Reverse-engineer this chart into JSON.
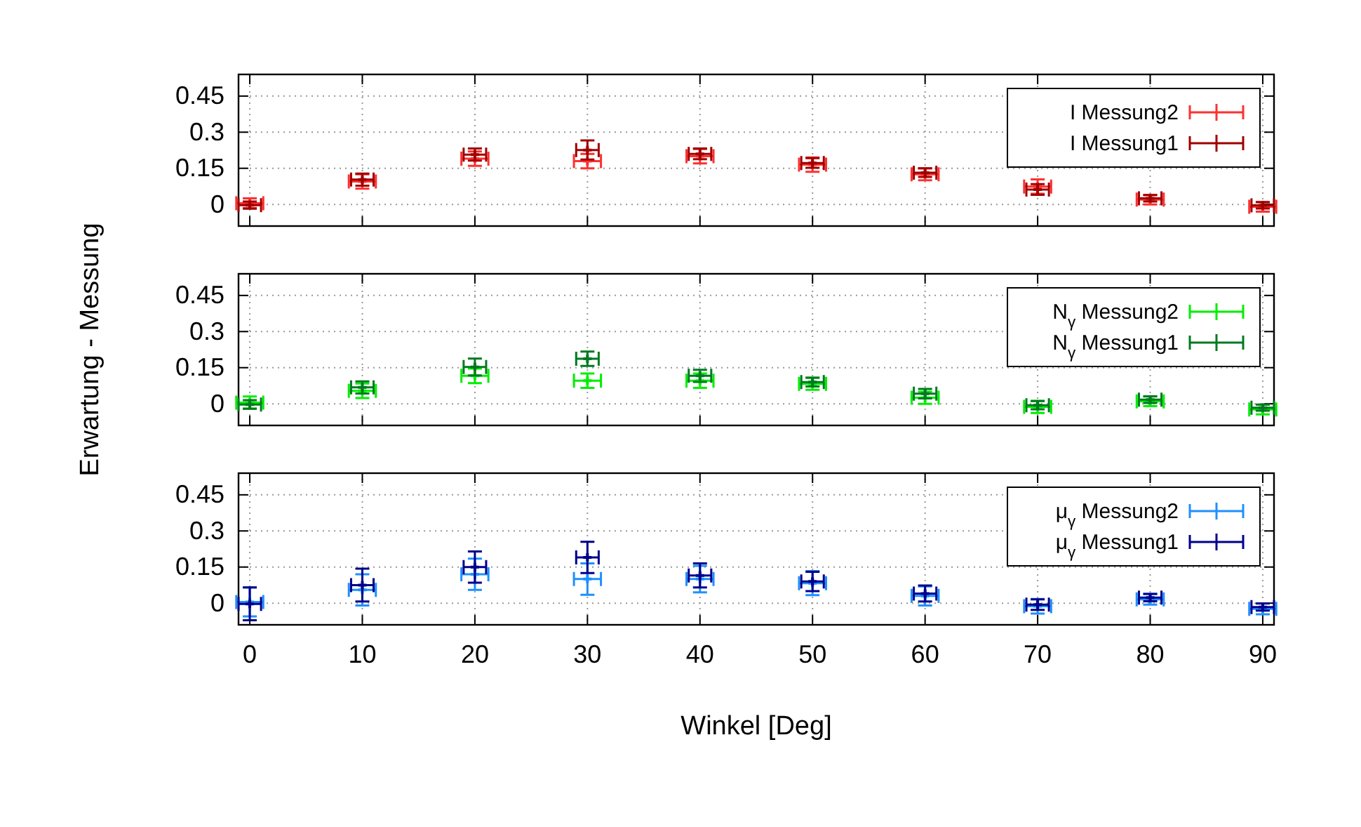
{
  "chart_data": [
    {
      "type": "scatter",
      "x": [
        0,
        10,
        20,
        30,
        40,
        50,
        60,
        70,
        80,
        90
      ],
      "xlim": [
        -1,
        91
      ],
      "xticks": [
        0,
        10,
        20,
        30,
        40,
        50,
        60,
        70,
        80,
        90
      ],
      "ylim": [
        -0.09,
        0.54
      ],
      "yticks": [
        0,
        0.15,
        0.3,
        0.45
      ],
      "grid": true,
      "legend": "top right",
      "marker": "cross",
      "tick_labels": "y",
      "series": [
        {
          "name": "I Messung2",
          "color": "#ff3030",
          "values": [
            0.005,
            0.095,
            0.19,
            0.18,
            0.2,
            0.165,
            0.125,
            0.074,
            0.02,
            -0.01
          ],
          "errors": [
            0.02,
            0.03,
            0.03,
            0.03,
            0.03,
            0.03,
            0.025,
            0.03,
            0.02,
            0.02
          ],
          "xerrors": [
            1.2,
            1.2,
            1.2,
            1.2,
            1.2,
            1.2,
            1.2,
            1.2,
            1.2,
            1.2
          ]
        },
        {
          "name": "I Messung1",
          "color": "#a00000",
          "values": [
            -0.003,
            0.103,
            0.207,
            0.226,
            0.21,
            0.172,
            0.132,
            0.062,
            0.025,
            -0.004
          ],
          "errors": [
            0.015,
            0.025,
            0.025,
            0.04,
            0.022,
            0.02,
            0.018,
            0.022,
            0.013,
            0.013
          ],
          "xerrors": [
            1,
            1,
            1,
            1,
            1,
            1,
            1,
            1,
            1,
            1
          ]
        }
      ]
    },
    {
      "type": "scatter",
      "x": [
        0,
        10,
        20,
        30,
        40,
        50,
        60,
        70,
        80,
        90
      ],
      "xlim": [
        -1,
        91
      ],
      "xticks": [
        0,
        10,
        20,
        30,
        40,
        50,
        60,
        70,
        80,
        90
      ],
      "ylim": [
        -0.09,
        0.54
      ],
      "yticks": [
        0,
        0.15,
        0.3,
        0.45
      ],
      "grid": true,
      "legend": "top right",
      "marker": "cross",
      "tick_labels": "y",
      "ylabel": "Erwartung - Messung",
      "series": [
        {
          "name": "N$_{γ}$ Messung2",
          "color": "#00ee00",
          "values": [
            0.005,
            0.054,
            0.116,
            0.096,
            0.096,
            0.083,
            0.025,
            -0.013,
            0.01,
            -0.024
          ],
          "errors": [
            0.025,
            0.03,
            0.03,
            0.03,
            0.03,
            0.025,
            0.025,
            0.025,
            0.02,
            0.02
          ],
          "xerrors": [
            1.2,
            1.2,
            1.2,
            1.2,
            1.2,
            1.2,
            1.2,
            1.2,
            1.2,
            1.2
          ]
        },
        {
          "name": "N$_{γ}$ Messung1",
          "color": "#007a20",
          "values": [
            -0.003,
            0.068,
            0.153,
            0.187,
            0.116,
            0.09,
            0.042,
            -0.006,
            0.017,
            -0.016
          ],
          "errors": [
            0.018,
            0.025,
            0.035,
            0.03,
            0.025,
            0.018,
            0.02,
            0.017,
            0.014,
            0.013
          ],
          "xerrors": [
            1,
            1,
            1,
            1,
            1,
            1,
            1,
            1,
            1,
            1
          ]
        }
      ]
    },
    {
      "type": "scatter",
      "x": [
        0,
        10,
        20,
        30,
        40,
        50,
        60,
        70,
        80,
        90
      ],
      "xlim": [
        -1,
        91
      ],
      "xticks": [
        0,
        10,
        20,
        30,
        40,
        50,
        60,
        70,
        80,
        90
      ],
      "ylim": [
        -0.09,
        0.54
      ],
      "yticks": [
        0,
        0.15,
        0.3,
        0.45
      ],
      "grid": true,
      "legend": "top right",
      "marker": "cross",
      "xlabel": "Winkel [Deg]",
      "series": [
        {
          "name": "μ$_{γ}$ Messung2",
          "color": "#1e90ff",
          "values": [
            0.005,
            0.055,
            0.12,
            0.1,
            0.1,
            0.083,
            0.03,
            -0.013,
            0.016,
            -0.024
          ],
          "errors": [
            0.06,
            0.065,
            0.065,
            0.065,
            0.055,
            0.05,
            0.04,
            0.03,
            0.022,
            0.022
          ],
          "xerrors": [
            1.2,
            1.2,
            1.2,
            1.2,
            1.2,
            1.2,
            1.2,
            1.2,
            1.2,
            1.2
          ]
        },
        {
          "name": "μ$_{γ}$ Messung1",
          "color": "#00008b",
          "values": [
            -0.003,
            0.075,
            0.15,
            0.19,
            0.115,
            0.09,
            0.04,
            -0.006,
            0.023,
            -0.016
          ],
          "errors": [
            0.068,
            0.068,
            0.065,
            0.065,
            0.05,
            0.04,
            0.033,
            0.022,
            0.015,
            0.015
          ],
          "xerrors": [
            1,
            1,
            1,
            1,
            1,
            1,
            1,
            1,
            1,
            1
          ]
        }
      ]
    }
  ]
}
